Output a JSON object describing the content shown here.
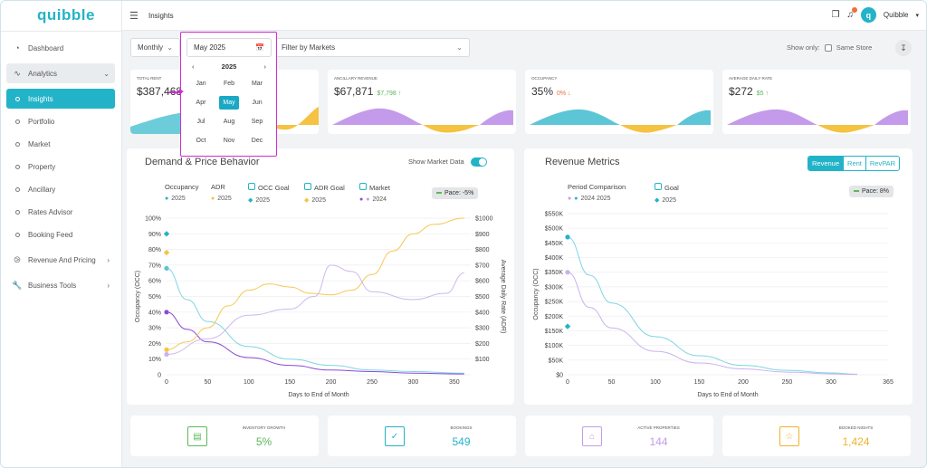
{
  "app": {
    "logo": "quibble"
  },
  "topbar": {
    "page": "Insights",
    "user": "Quibble",
    "avatar_letter": "q"
  },
  "sidebar": {
    "items": [
      {
        "label": "Dashboard",
        "icon": "dashboard-icon"
      },
      {
        "label": "Analytics",
        "icon": "chart-line-icon"
      },
      {
        "label": "Insights"
      },
      {
        "label": "Portfolio"
      },
      {
        "label": "Market"
      },
      {
        "label": "Property"
      },
      {
        "label": "Ancillary"
      },
      {
        "label": "Rates Advisor"
      },
      {
        "label": "Booking Feed"
      },
      {
        "label": "Revenue And Pricing",
        "icon": "compass-icon"
      },
      {
        "label": "Business Tools",
        "icon": "wrench-icon"
      }
    ]
  },
  "filters": {
    "period": "Monthly",
    "date": "May 2025",
    "markets_placeholder": "Filter by Markets",
    "show_only": "Show only:",
    "same_store": "Same Store"
  },
  "date_picker": {
    "year": "2025",
    "months": [
      "Jan",
      "Feb",
      "Mar",
      "Apr",
      "May",
      "Jun",
      "Jul",
      "Aug",
      "Sep",
      "Oct",
      "Nov",
      "Dec"
    ],
    "selected": "May"
  },
  "kpis": [
    {
      "label": "Total Rent",
      "value": "$387,468",
      "change": ""
    },
    {
      "label": "Ancillary Revenue",
      "value": "$67,871",
      "change": "$7,798 ↑"
    },
    {
      "label": "Occupancy",
      "value": "35%",
      "change": "0% ↓"
    },
    {
      "label": "Average Daily Rate",
      "value": "$272",
      "change": "$5 ↑"
    }
  ],
  "demand": {
    "title": "Demand & Price Behavior",
    "show_market": "Show Market Data",
    "legend": [
      {
        "name": "Occupancy",
        "sub": "2025"
      },
      {
        "name": "ADR",
        "sub": "2025"
      },
      {
        "name": "OCC Goal",
        "sub": "2025"
      },
      {
        "name": "ADR Goal",
        "sub": "2025"
      },
      {
        "name": "Market",
        "sub": "2024"
      }
    ],
    "pace": "Pace: -5%",
    "xlabel": "Days to End of Month",
    "ylabel_left": "Occupancy (OCC)",
    "ylabel_right": "Average Daily Rate (ADR)"
  },
  "revenue": {
    "title": "Revenue Metrics",
    "tabs": [
      "Revenue",
      "Rent",
      "RevPAR"
    ],
    "legend": [
      {
        "name": "Period Comparison",
        "sub": "2024  2025"
      },
      {
        "name": "Goal",
        "sub": "2025"
      }
    ],
    "pace": "Pace: 8%",
    "xlabel": "Days to End of Month",
    "ylabel": "Occupancy (OCC)"
  },
  "bottom": [
    {
      "label": "Inventory Growth",
      "value": "5%",
      "color": "#5cb85c",
      "icon": "bar-chart-icon"
    },
    {
      "label": "Bookings",
      "value": "549",
      "color": "#23b3c8",
      "icon": "calendar-check-icon"
    },
    {
      "label": "Active Properties",
      "value": "144",
      "color": "#c49bea",
      "icon": "house-icon"
    },
    {
      "label": "Booked Nights",
      "value": "1,424",
      "color": "#f2b22b",
      "icon": "star-icon"
    }
  ],
  "colors": {
    "accent": "#23b3c8",
    "occ": "#23b3c8",
    "adr": "#f5c242",
    "market": "#8a4bd9",
    "picker_highlight": "#d52ad3"
  },
  "chart_data": [
    {
      "type": "line",
      "title": "Demand & Price Behavior",
      "xlabel": "Days to End of Month",
      "ylabel": "Occupancy (OCC)",
      "y2label": "Average Daily Rate (ADR)",
      "x_ticks": [
        0,
        50,
        100,
        150,
        200,
        250,
        300,
        350
      ],
      "y_ticks": [
        "0",
        "10%",
        "20%",
        "30%",
        "40%",
        "50%",
        "60%",
        "70%",
        "80%",
        "90%",
        "100%"
      ],
      "y2_ticks": [
        "$100",
        "$200",
        "$300",
        "$400",
        "$500",
        "$600",
        "$700",
        "$800",
        "$900",
        "$1000"
      ],
      "xlim": [
        0,
        370
      ],
      "ylim": [
        0,
        100
      ],
      "y2lim": [
        0,
        1000
      ],
      "series": [
        {
          "name": "Occupancy 2025",
          "x": [
            0,
            25,
            50,
            100,
            150,
            200,
            250,
            300,
            362
          ],
          "y": [
            68,
            48,
            34,
            18,
            10,
            6,
            3,
            2,
            1
          ]
        },
        {
          "name": "Market 2024",
          "x": [
            0,
            25,
            50,
            100,
            150,
            200,
            250,
            300,
            362
          ],
          "y": [
            40,
            29,
            21,
            11,
            6,
            3,
            2,
            1,
            0.5
          ]
        },
        {
          "name": "ADR 2025",
          "x": [
            0,
            25,
            50,
            75,
            100,
            125,
            150,
            175,
            200,
            225,
            250,
            275,
            300,
            325,
            362
          ],
          "y": [
            160,
            210,
            300,
            440,
            540,
            580,
            560,
            520,
            510,
            540,
            640,
            790,
            900,
            960,
            1000
          ]
        },
        {
          "name": "ADR Market",
          "x": [
            0,
            50,
            100,
            150,
            180,
            200,
            225,
            250,
            300,
            340,
            362
          ],
          "y": [
            130,
            230,
            380,
            420,
            500,
            700,
            660,
            530,
            480,
            520,
            650
          ]
        },
        {
          "name": "OCC Goal 2025",
          "x": [
            0
          ],
          "y": [
            90
          ]
        },
        {
          "name": "ADR Goal 2025",
          "x": [
            0
          ],
          "y": [
            780
          ]
        }
      ]
    },
    {
      "type": "line",
      "title": "Revenue Metrics",
      "xlabel": "Days to End of Month",
      "ylabel": "Occupancy (OCC)",
      "x_ticks": [
        0,
        50,
        100,
        150,
        200,
        250,
        300,
        365
      ],
      "y_ticks": [
        "$0",
        "$50K",
        "$100K",
        "$150K",
        "$200K",
        "$250K",
        "$300K",
        "$350K",
        "$400K",
        "$450K",
        "$500K",
        "$550K"
      ],
      "xlim": [
        0,
        365
      ],
      "ylim": [
        0,
        550000
      ],
      "series": [
        {
          "name": "2025",
          "x": [
            0,
            25,
            50,
            100,
            150,
            200,
            250,
            300,
            330
          ],
          "y": [
            470000,
            340000,
            245000,
            130000,
            65000,
            32000,
            15000,
            6000,
            2000
          ]
        },
        {
          "name": "2024",
          "x": [
            0,
            25,
            50,
            100,
            150,
            200,
            250,
            300,
            330
          ],
          "y": [
            350000,
            230000,
            160000,
            80000,
            40000,
            20000,
            9000,
            3000,
            1000
          ]
        },
        {
          "name": "Goal 2025",
          "x": [
            0
          ],
          "y": [
            165000
          ]
        }
      ]
    }
  ]
}
